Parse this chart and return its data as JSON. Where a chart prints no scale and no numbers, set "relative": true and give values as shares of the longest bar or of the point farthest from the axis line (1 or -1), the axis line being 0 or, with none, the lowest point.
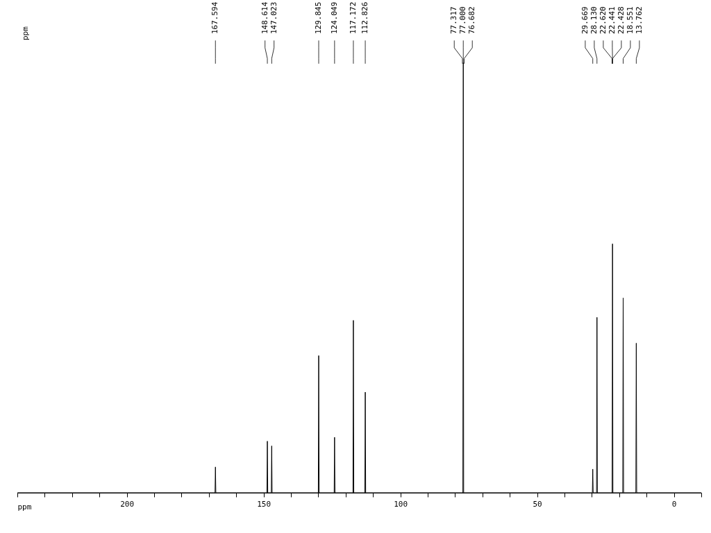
{
  "chart_data": {
    "type": "line",
    "relative": true,
    "xlabel": "ppm",
    "xlim": [
      240,
      -10
    ],
    "xticks": [
      {
        "value": 240,
        "label": null
      },
      {
        "value": 230,
        "label": null
      },
      {
        "value": 220,
        "label": null
      },
      {
        "value": 210,
        "label": null
      },
      200,
      {
        "value": 190,
        "label": null
      },
      {
        "value": 180,
        "label": null
      },
      {
        "value": 170,
        "label": null
      },
      {
        "value": 160,
        "label": null
      },
      150,
      {
        "value": 140,
        "label": null
      },
      {
        "value": 130,
        "label": null
      },
      {
        "value": 120,
        "label": null
      },
      {
        "value": 110,
        "label": null
      },
      100,
      {
        "value": 90,
        "label": null
      },
      {
        "value": 80,
        "label": null
      },
      {
        "value": 70,
        "label": null
      },
      {
        "value": 60,
        "label": null
      },
      50,
      {
        "value": 40,
        "label": null
      },
      {
        "value": 30,
        "label": null
      },
      {
        "value": 20,
        "label": null
      },
      {
        "value": 10,
        "label": null
      },
      0,
      {
        "value": -10,
        "label": null
      }
    ],
    "series": [
      {
        "color": "#000000",
        "x": [
          240,
          167.744,
          167.594,
          167.444,
          148.764,
          148.614,
          148.464,
          147.173,
          147.023,
          146.873,
          129.995,
          129.845,
          129.695,
          124.199,
          124.049,
          123.899,
          117.322,
          117.172,
          117.022,
          112.976,
          112.826,
          112.676,
          77.15,
          77.0,
          76.85,
          29.819,
          29.669,
          29.519,
          28.28,
          28.13,
          27.98,
          22.591,
          22.441,
          22.291,
          18.701,
          18.551,
          18.401,
          13.912,
          13.762,
          13.612,
          -10
        ],
        "values": [
          0,
          0,
          0.06,
          0,
          0,
          0.12,
          0,
          0,
          0.109,
          0,
          0,
          0.319,
          0,
          0,
          0.129,
          0,
          0,
          0.401,
          0,
          0,
          0.234,
          0,
          0,
          1,
          0,
          0,
          0.055,
          0,
          0,
          0.408,
          0,
          0,
          0.579,
          0,
          0,
          0.453,
          0,
          0,
          0.348,
          0,
          0
        ]
      }
    ],
    "annotations": [
      "ppm",
      {
        "text": "167.594",
        "x": 167.594
      },
      {
        "text": "148.614",
        "x": 148.614
      },
      {
        "text": "147.023",
        "x": 147.023
      },
      {
        "text": "129.845",
        "x": 129.845
      },
      {
        "text": "124.049",
        "x": 124.049
      },
      {
        "text": "117.172",
        "x": 117.172
      },
      {
        "text": "112.826",
        "x": 112.826
      },
      {
        "text": "77.317",
        "x": 77.317
      },
      {
        "text": "77.000",
        "x": 77.0
      },
      {
        "text": "76.682",
        "x": 76.682
      },
      {
        "text": "29.669",
        "x": 29.669
      },
      {
        "text": "28.130",
        "x": 28.13
      },
      {
        "text": "22.620",
        "x": 22.62
      },
      {
        "text": "22.441",
        "x": 22.441
      },
      {
        "text": "22.428",
        "x": 22.428
      },
      {
        "text": "18.551",
        "x": 18.551
      },
      {
        "text": "13.762",
        "x": 13.762
      }
    ]
  }
}
